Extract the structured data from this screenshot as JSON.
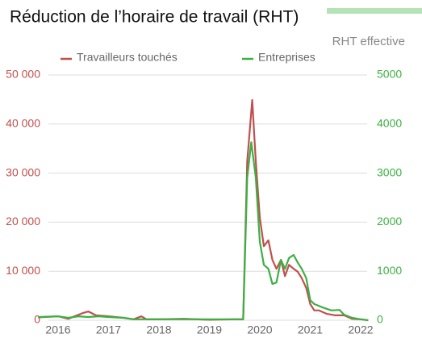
{
  "chart_data": {
    "type": "line",
    "title": "Réduction de l’horaire de travail (RHT)",
    "subtitle": "RHT effective",
    "xlim": [
      2015.5,
      2022.25
    ],
    "xticks": [
      2016,
      2017,
      2018,
      2019,
      2020,
      2021,
      2022
    ],
    "ylim": [
      0,
      50000
    ],
    "yticks": [
      0,
      {
        "value": 10000,
        "label": "10 000"
      },
      {
        "value": 20000,
        "label": "20 000"
      },
      {
        "value": 30000,
        "label": "30 000"
      },
      {
        "value": 40000,
        "label": "40 000"
      },
      {
        "value": 50000,
        "label": "50 000"
      }
    ],
    "y2lim": [
      0,
      5000
    ],
    "y2ticks": [
      0,
      1000,
      2000,
      3000,
      4000,
      5000
    ],
    "grid": true,
    "legend": "top",
    "series": [
      {
        "name": "Travailleurs touchés",
        "color": "#c0504d",
        "axis": "y",
        "x": [
          2015.6,
          2016.0,
          2016.2,
          2016.5,
          2016.6,
          2016.75,
          2017.0,
          2017.3,
          2017.5,
          2017.65,
          2017.75,
          2018.0,
          2018.5,
          2019.0,
          2019.5,
          2019.67,
          2019.75,
          2019.85,
          2019.92,
          2020.0,
          2020.08,
          2020.17,
          2020.25,
          2020.33,
          2020.42,
          2020.5,
          2020.58,
          2020.67,
          2020.75,
          2020.83,
          2020.92,
          2021.0,
          2021.08,
          2021.17,
          2021.33,
          2021.5,
          2021.67,
          2021.83,
          2022.0,
          2022.15
        ],
        "values": [
          600,
          800,
          300,
          1500,
          1800,
          1000,
          800,
          500,
          200,
          800,
          200,
          200,
          300,
          100,
          200,
          200,
          32400,
          44900,
          32400,
          20900,
          15100,
          16300,
          12300,
          10500,
          12300,
          9000,
          11300,
          10500,
          9900,
          8600,
          6600,
          3300,
          2000,
          2000,
          1300,
          1000,
          1000,
          300,
          200,
          0
        ]
      },
      {
        "name": "Entreprises",
        "color": "#3cb043",
        "axis": "y2",
        "x": [
          2015.6,
          2016.0,
          2016.2,
          2016.4,
          2016.6,
          2016.8,
          2017.0,
          2017.3,
          2017.5,
          2018.0,
          2019.5,
          2019.67,
          2019.75,
          2019.83,
          2019.92,
          2020.0,
          2020.08,
          2020.17,
          2020.25,
          2020.33,
          2020.42,
          2020.5,
          2020.58,
          2020.67,
          2020.75,
          2020.83,
          2020.92,
          2021.0,
          2021.08,
          2021.25,
          2021.42,
          2021.58,
          2021.67,
          2021.83,
          2022.0,
          2022.15
        ],
        "values": [
          65,
          80,
          50,
          80,
          65,
          80,
          65,
          50,
          20,
          20,
          20,
          20,
          2910,
          3630,
          2910,
          1600,
          1130,
          1050,
          740,
          770,
          1230,
          1050,
          1270,
          1330,
          1180,
          1050,
          860,
          410,
          330,
          260,
          200,
          210,
          115,
          50,
          20,
          0
        ]
      }
    ]
  }
}
